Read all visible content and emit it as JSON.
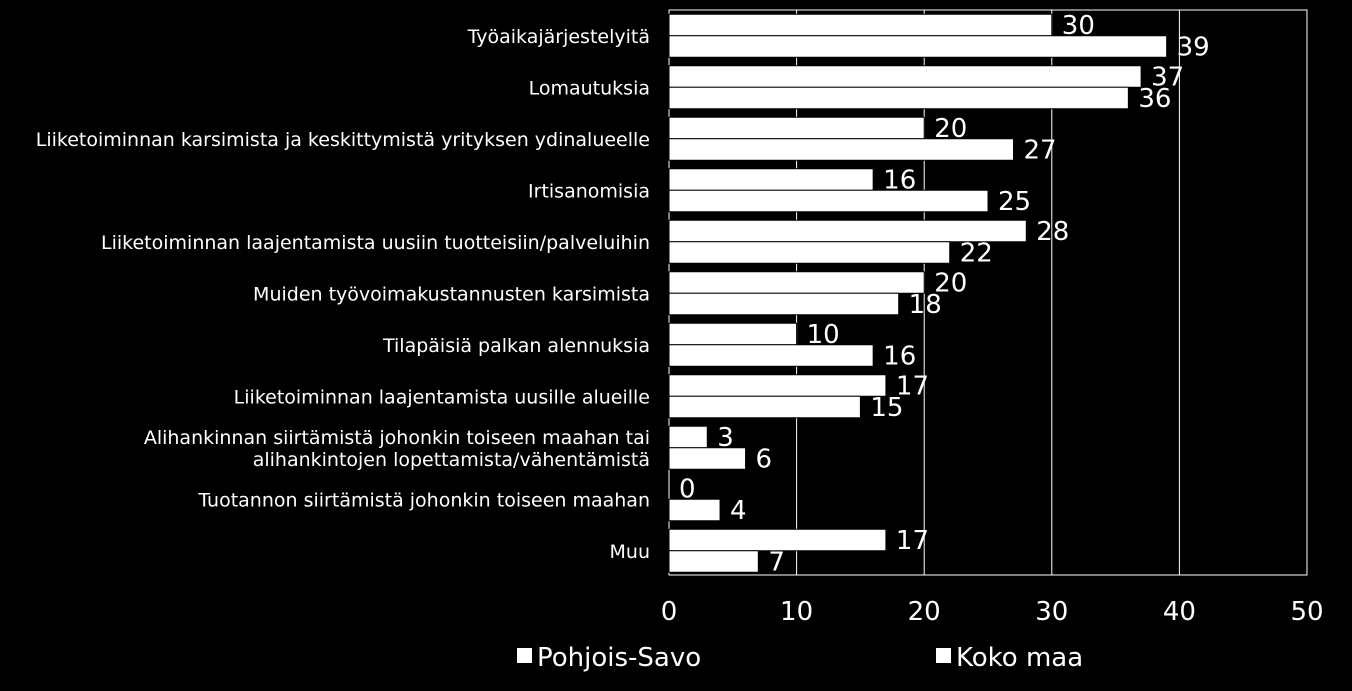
{
  "chart_data": {
    "type": "bar",
    "orientation": "horizontal",
    "categories": [
      "Työaikajärjestelyitä",
      "Lomautuksia",
      "Liiketoiminnan karsimista ja keskittymistä yrityksen ydinalueelle",
      "Irtisanomisia",
      "Liiketoiminnan laajentamista uusiin tuotteisiin/palveluihin",
      "Muiden työvoimakustannusten karsimista",
      "Tilapäisiä palkan alennuksia",
      "Liiketoiminnan laajentamista uusille alueille",
      [
        "Alihankinnan siirtämistä johonkin toiseen maahan tai",
        "alihankintojen lopettamista/vähentämistä"
      ],
      "Tuotannon siirtämistä johonkin toiseen maahan",
      "Muu"
    ],
    "series": [
      {
        "name": "Pohjois-Savo",
        "values": [
          30,
          37,
          20,
          16,
          28,
          20,
          10,
          17,
          3,
          0,
          17
        ]
      },
      {
        "name": "Koko maa",
        "values": [
          39,
          36,
          27,
          25,
          22,
          18,
          16,
          15,
          6,
          4,
          7
        ]
      }
    ],
    "xlim": [
      0,
      50
    ],
    "xticks": [
      0,
      10,
      20,
      30,
      40,
      50
    ],
    "grid": true,
    "legend_position": "bottom",
    "colors": {
      "background": "#000000",
      "plot_area": "#000000",
      "bars": "#ffffff",
      "bar_outline": "#000000",
      "gridlines": "#ffffff",
      "text": "#ffffff",
      "legend_marker": "#ffffff"
    }
  }
}
